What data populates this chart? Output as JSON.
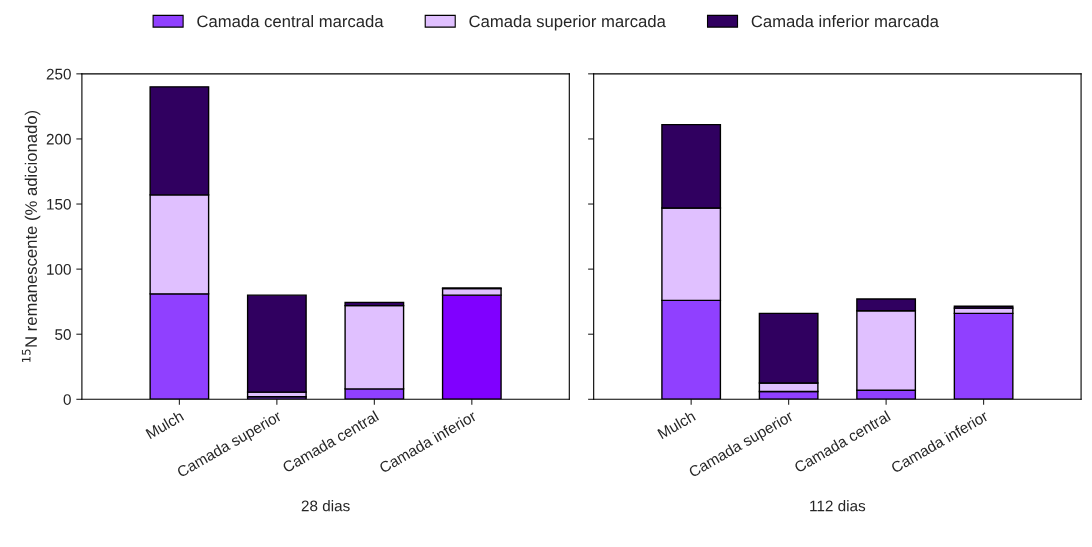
{
  "chart_data": [
    {
      "type": "bar",
      "stacked": true,
      "xlabel": "28 dias",
      "ylabel": "$^{15}$N remanescente (% adicionado)",
      "categories": [
        "Mulch",
        "Camada superior",
        "Camada central",
        "Camada inferior"
      ],
      "ylim": [
        0,
        250
      ],
      "yticks": [
        0,
        50,
        100,
        150,
        200,
        250
      ],
      "legend": "top",
      "grid": false,
      "series": [
        {
          "name": "Camada central marcada",
          "color": "#9040ff",
          "colors": [
            "#9040ff",
            "#9040ff",
            "#9040ff",
            "#8000ff"
          ],
          "values": [
            81,
            2,
            8,
            80
          ]
        },
        {
          "name": "Camada superior marcada",
          "color": "#e0c0ff",
          "values": [
            76,
            3.5,
            64,
            5
          ]
        },
        {
          "name": "Camada inferior marcada",
          "color": "#300060",
          "values": [
            83,
            74.5,
            2.5,
            0.5
          ]
        }
      ]
    },
    {
      "type": "bar",
      "stacked": true,
      "xlabel": "112 dias",
      "categories": [
        "Mulch",
        "Camada superior",
        "Camada central",
        "Camada inferior"
      ],
      "ylim": [
        0,
        250
      ],
      "yticks": [
        0,
        50,
        100,
        150,
        200,
        250
      ],
      "tick_labels": "x",
      "grid": false,
      "series": [
        {
          "color": "#9040ff",
          "values": [
            76,
            6,
            7,
            66
          ]
        },
        {
          "color": "#e0c0ff",
          "values": [
            71,
            6.5,
            61,
            4
          ]
        },
        {
          "color": "#300060",
          "values": [
            64,
            53.5,
            9,
            1.5
          ]
        }
      ]
    }
  ]
}
